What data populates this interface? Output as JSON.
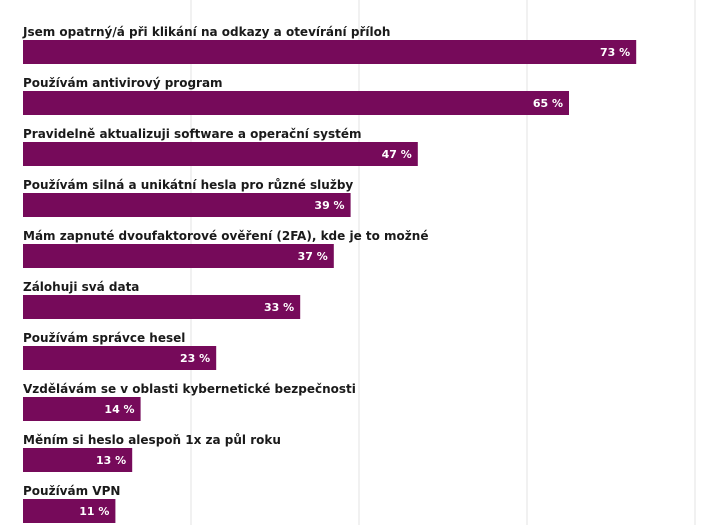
{
  "chart_data": {
    "type": "bar",
    "orientation": "horizontal",
    "categories": [
      "Jsem opatrný/á při klikání na odkazy a otevírání příloh",
      "Používám antivirový program",
      "Pravidelně aktualizuji software a operační systém",
      "Používám silná a unikátní hesla pro různé služby",
      "Mám zapnuté dvoufaktorové ověření (2FA), kde je to možné",
      "Zálohuji svá data",
      "Používám správce hesel",
      "Vzdělávám se v oblasti kybernetické bezpečnosti",
      "Měním si heslo alespoň 1x za půl roku",
      "Používám VPN"
    ],
    "values": [
      73,
      65,
      47,
      39,
      37,
      33,
      23,
      14,
      13,
      11
    ],
    "value_labels": [
      "73 %",
      "65 %",
      "47 %",
      "39 %",
      "37 %",
      "33 %",
      "23 %",
      "14 %",
      "13 %",
      "11 %"
    ],
    "xlim": [
      0,
      80
    ],
    "grid": true,
    "bar_color": "#760a5a",
    "label_color": "#1a1a1a",
    "value_label_color": "#ffffff",
    "grid_color": "#e3e3e3"
  }
}
